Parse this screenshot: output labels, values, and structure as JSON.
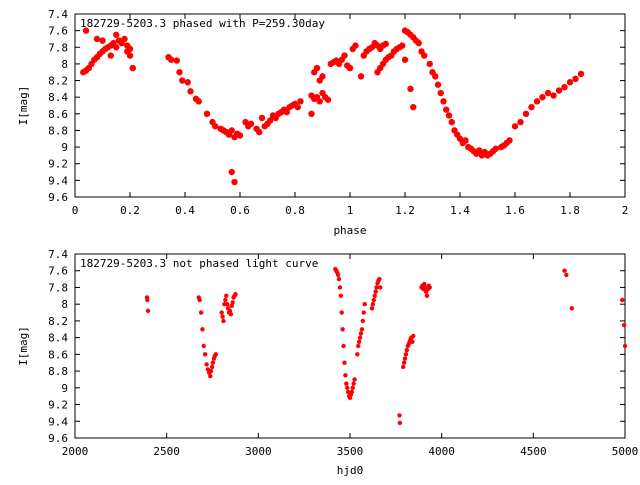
{
  "chart_data": [
    {
      "type": "scatter",
      "title": "182729-5203.3 phased with P=259.30day",
      "xlabel": "phase",
      "ylabel": "I[mag]",
      "xlim": [
        0,
        2
      ],
      "ylim": [
        9.6,
        7.4
      ],
      "y_inverted": true,
      "xticks": [
        "0",
        "0.2",
        "0.4",
        "0.6",
        "0.8",
        "1",
        "1.2",
        "1.4",
        "1.6",
        "1.8",
        "2"
      ],
      "yticks": [
        "7.4",
        "7.6",
        "7.8",
        "8",
        "8.2",
        "8.4",
        "8.6",
        "8.8",
        "9",
        "9.2",
        "9.4",
        "9.6"
      ],
      "grid": false,
      "marker_color": "#ff0000",
      "series": [
        {
          "points": [
            [
              0.03,
              8.1
            ],
            [
              0.04,
              7.6
            ],
            [
              0.04,
              8.08
            ],
            [
              0.05,
              8.05
            ],
            [
              0.06,
              8.0
            ],
            [
              0.07,
              7.95
            ],
            [
              0.08,
              7.92
            ],
            [
              0.08,
              7.7
            ],
            [
              0.09,
              7.88
            ],
            [
              0.1,
              7.85
            ],
            [
              0.1,
              7.72
            ],
            [
              0.11,
              7.82
            ],
            [
              0.12,
              7.8
            ],
            [
              0.13,
              7.78
            ],
            [
              0.13,
              7.9
            ],
            [
              0.14,
              7.75
            ],
            [
              0.15,
              7.8
            ],
            [
              0.15,
              7.65
            ],
            [
              0.16,
              7.72
            ],
            [
              0.17,
              7.75
            ],
            [
              0.18,
              7.7
            ],
            [
              0.19,
              7.78
            ],
            [
              0.19,
              7.85
            ],
            [
              0.2,
              7.82
            ],
            [
              0.2,
              7.9
            ],
            [
              0.21,
              8.05
            ],
            [
              0.34,
              7.92
            ],
            [
              0.35,
              7.95
            ],
            [
              0.37,
              7.96
            ],
            [
              0.38,
              8.1
            ],
            [
              0.39,
              8.2
            ],
            [
              0.41,
              8.22
            ],
            [
              0.42,
              8.33
            ],
            [
              0.44,
              8.42
            ],
            [
              0.45,
              8.45
            ],
            [
              0.48,
              8.6
            ],
            [
              0.5,
              8.7
            ],
            [
              0.51,
              8.75
            ],
            [
              0.53,
              8.78
            ],
            [
              0.54,
              8.8
            ],
            [
              0.55,
              8.82
            ],
            [
              0.56,
              8.85
            ],
            [
              0.57,
              8.8
            ],
            [
              0.58,
              8.88
            ],
            [
              0.59,
              8.84
            ],
            [
              0.6,
              8.86
            ],
            [
              0.57,
              9.3
            ],
            [
              0.58,
              9.42
            ],
            [
              0.62,
              8.7
            ],
            [
              0.63,
              8.75
            ],
            [
              0.64,
              8.72
            ],
            [
              0.66,
              8.78
            ],
            [
              0.67,
              8.82
            ],
            [
              0.68,
              8.65
            ],
            [
              0.69,
              8.75
            ],
            [
              0.7,
              8.72
            ],
            [
              0.71,
              8.68
            ],
            [
              0.72,
              8.62
            ],
            [
              0.73,
              8.65
            ],
            [
              0.74,
              8.6
            ],
            [
              0.75,
              8.58
            ],
            [
              0.76,
              8.55
            ],
            [
              0.77,
              8.58
            ],
            [
              0.78,
              8.52
            ],
            [
              0.79,
              8.5
            ],
            [
              0.8,
              8.48
            ],
            [
              0.81,
              8.52
            ],
            [
              0.82,
              8.45
            ],
            [
              0.86,
              8.38
            ],
            [
              0.86,
              8.6
            ],
            [
              0.87,
              8.42
            ],
            [
              0.88,
              8.4
            ],
            [
              0.89,
              8.45
            ],
            [
              0.9,
              8.35
            ],
            [
              0.91,
              8.4
            ],
            [
              0.92,
              8.43
            ],
            [
              0.87,
              8.1
            ],
            [
              0.88,
              8.05
            ],
            [
              0.89,
              8.2
            ],
            [
              0.9,
              8.15
            ],
            [
              0.93,
              8.0
            ],
            [
              0.94,
              7.98
            ],
            [
              0.95,
              7.96
            ],
            [
              0.96,
              8.0
            ],
            [
              0.97,
              7.95
            ],
            [
              0.98,
              7.9
            ],
            [
              0.99,
              8.02
            ],
            [
              1.0,
              8.05
            ],
            [
              1.01,
              7.82
            ],
            [
              1.02,
              7.78
            ],
            [
              1.04,
              8.15
            ],
            [
              1.05,
              7.9
            ],
            [
              1.06,
              7.85
            ],
            [
              1.07,
              7.82
            ],
            [
              1.08,
              7.8
            ],
            [
              1.09,
              7.75
            ],
            [
              1.1,
              7.78
            ],
            [
              1.11,
              7.82
            ],
            [
              1.12,
              7.78
            ],
            [
              1.13,
              7.76
            ],
            [
              1.1,
              8.1
            ],
            [
              1.11,
              8.05
            ],
            [
              1.12,
              8.0
            ],
            [
              1.13,
              7.95
            ],
            [
              1.14,
              7.92
            ],
            [
              1.15,
              7.9
            ],
            [
              1.16,
              7.85
            ],
            [
              1.17,
              7.82
            ],
            [
              1.18,
              7.8
            ],
            [
              1.19,
              7.78
            ],
            [
              1.2,
              7.6
            ],
            [
              1.21,
              7.62
            ],
            [
              1.22,
              7.65
            ],
            [
              1.23,
              7.68
            ],
            [
              1.24,
              7.72
            ],
            [
              1.25,
              7.75
            ],
            [
              1.2,
              7.95
            ],
            [
              1.22,
              8.3
            ],
            [
              1.23,
              8.52
            ],
            [
              1.26,
              7.85
            ],
            [
              1.27,
              7.9
            ],
            [
              1.29,
              8.0
            ],
            [
              1.3,
              8.1
            ],
            [
              1.31,
              8.15
            ],
            [
              1.32,
              8.25
            ],
            [
              1.33,
              8.35
            ],
            [
              1.34,
              8.45
            ],
            [
              1.35,
              8.55
            ],
            [
              1.36,
              8.62
            ],
            [
              1.37,
              8.7
            ],
            [
              1.38,
              8.8
            ],
            [
              1.39,
              8.85
            ],
            [
              1.4,
              8.9
            ],
            [
              1.41,
              8.95
            ],
            [
              1.42,
              8.92
            ],
            [
              1.43,
              9.0
            ],
            [
              1.44,
              9.02
            ],
            [
              1.45,
              9.05
            ],
            [
              1.46,
              9.08
            ],
            [
              1.47,
              9.04
            ],
            [
              1.48,
              9.1
            ],
            [
              1.49,
              9.06
            ],
            [
              1.5,
              9.1
            ],
            [
              1.51,
              9.08
            ],
            [
              1.52,
              9.05
            ],
            [
              1.53,
              9.02
            ],
            [
              1.55,
              9.0
            ],
            [
              1.56,
              8.98
            ],
            [
              1.57,
              8.95
            ],
            [
              1.58,
              8.92
            ],
            [
              1.6,
              8.75
            ],
            [
              1.62,
              8.7
            ],
            [
              1.64,
              8.6
            ],
            [
              1.66,
              8.52
            ],
            [
              1.68,
              8.45
            ],
            [
              1.7,
              8.4
            ],
            [
              1.72,
              8.35
            ],
            [
              1.74,
              8.38
            ],
            [
              1.76,
              8.32
            ],
            [
              1.78,
              8.28
            ],
            [
              1.8,
              8.22
            ],
            [
              1.82,
              8.18
            ],
            [
              1.84,
              8.12
            ]
          ]
        }
      ]
    },
    {
      "type": "scatter",
      "title": "182729-5203.3 not phased light curve",
      "xlabel": "hjd0",
      "ylabel": "I[mag]",
      "xlim": [
        2000,
        5000
      ],
      "ylim": [
        9.6,
        7.4
      ],
      "y_inverted": true,
      "xticks": [
        "2000",
        "2500",
        "3000",
        "3500",
        "4000",
        "4500",
        "5000"
      ],
      "yticks": [
        "7.4",
        "7.6",
        "7.8",
        "8",
        "8.2",
        "8.4",
        "8.6",
        "8.8",
        "9",
        "9.2",
        "9.4",
        "9.6"
      ],
      "grid": false,
      "marker_color": "#ff0000",
      "series": [
        {
          "points": [
            [
              2393,
              7.92
            ],
            [
              2395,
              7.95
            ],
            [
              2398,
              8.08
            ],
            [
              2675,
              7.92
            ],
            [
              2680,
              7.95
            ],
            [
              2688,
              8.1
            ],
            [
              2695,
              8.3
            ],
            [
              2702,
              8.5
            ],
            [
              2710,
              8.6
            ],
            [
              2718,
              8.72
            ],
            [
              2725,
              8.78
            ],
            [
              2732,
              8.82
            ],
            [
              2738,
              8.86
            ],
            [
              2742,
              8.8
            ],
            [
              2748,
              8.75
            ],
            [
              2752,
              8.7
            ],
            [
              2758,
              8.65
            ],
            [
              2762,
              8.62
            ],
            [
              2768,
              8.6
            ],
            [
              2800,
              8.1
            ],
            [
              2805,
              8.15
            ],
            [
              2810,
              8.2
            ],
            [
              2815,
              8.0
            ],
            [
              2820,
              7.95
            ],
            [
              2825,
              7.9
            ],
            [
              2830,
              8.0
            ],
            [
              2835,
              8.05
            ],
            [
              2840,
              8.1
            ],
            [
              2845,
              8.08
            ],
            [
              2850,
              8.12
            ],
            [
              2855,
              8.02
            ],
            [
              2860,
              7.98
            ],
            [
              2865,
              7.92
            ],
            [
              2870,
              7.9
            ],
            [
              2875,
              7.88
            ],
            [
              3420,
              7.58
            ],
            [
              3425,
              7.6
            ],
            [
              3430,
              7.62
            ],
            [
              3435,
              7.65
            ],
            [
              3440,
              7.7
            ],
            [
              3445,
              7.8
            ],
            [
              3450,
              7.9
            ],
            [
              3455,
              8.1
            ],
            [
              3460,
              8.3
            ],
            [
              3465,
              8.5
            ],
            [
              3470,
              8.7
            ],
            [
              3475,
              8.85
            ],
            [
              3480,
              8.95
            ],
            [
              3485,
              9.0
            ],
            [
              3490,
              9.05
            ],
            [
              3495,
              9.1
            ],
            [
              3500,
              9.12
            ],
            [
              3505,
              9.08
            ],
            [
              3510,
              9.05
            ],
            [
              3515,
              9.0
            ],
            [
              3520,
              8.95
            ],
            [
              3525,
              8.9
            ],
            [
              3540,
              8.6
            ],
            [
              3545,
              8.5
            ],
            [
              3550,
              8.45
            ],
            [
              3555,
              8.4
            ],
            [
              3560,
              8.35
            ],
            [
              3565,
              8.3
            ],
            [
              3570,
              8.2
            ],
            [
              3575,
              8.1
            ],
            [
              3580,
              8.0
            ],
            [
              3620,
              8.05
            ],
            [
              3625,
              8.0
            ],
            [
              3630,
              7.95
            ],
            [
              3635,
              7.9
            ],
            [
              3640,
              7.85
            ],
            [
              3645,
              7.8
            ],
            [
              3650,
              7.75
            ],
            [
              3655,
              7.72
            ],
            [
              3660,
              7.7
            ],
            [
              3665,
              7.8
            ],
            [
              3770,
              9.33
            ],
            [
              3772,
              9.42
            ],
            [
              3790,
              8.75
            ],
            [
              3795,
              8.7
            ],
            [
              3800,
              8.65
            ],
            [
              3805,
              8.6
            ],
            [
              3810,
              8.55
            ],
            [
              3815,
              8.5
            ],
            [
              3820,
              8.48
            ],
            [
              3825,
              8.45
            ],
            [
              3830,
              8.42
            ],
            [
              3835,
              8.4
            ],
            [
              3840,
              8.45
            ],
            [
              3845,
              8.38
            ],
            [
              3890,
              7.8
            ],
            [
              3895,
              7.78
            ],
            [
              3900,
              7.82
            ],
            [
              3905,
              7.76
            ],
            [
              3910,
              7.8
            ],
            [
              3915,
              7.85
            ],
            [
              3920,
              7.9
            ],
            [
              3925,
              7.82
            ],
            [
              3930,
              7.78
            ],
            [
              3935,
              7.8
            ],
            [
              4670,
              7.6
            ],
            [
              4680,
              7.65
            ],
            [
              4710,
              8.05
            ],
            [
              4985,
              7.95
            ],
            [
              4995,
              8.25
            ],
            [
              5000,
              8.5
            ]
          ]
        }
      ]
    }
  ]
}
